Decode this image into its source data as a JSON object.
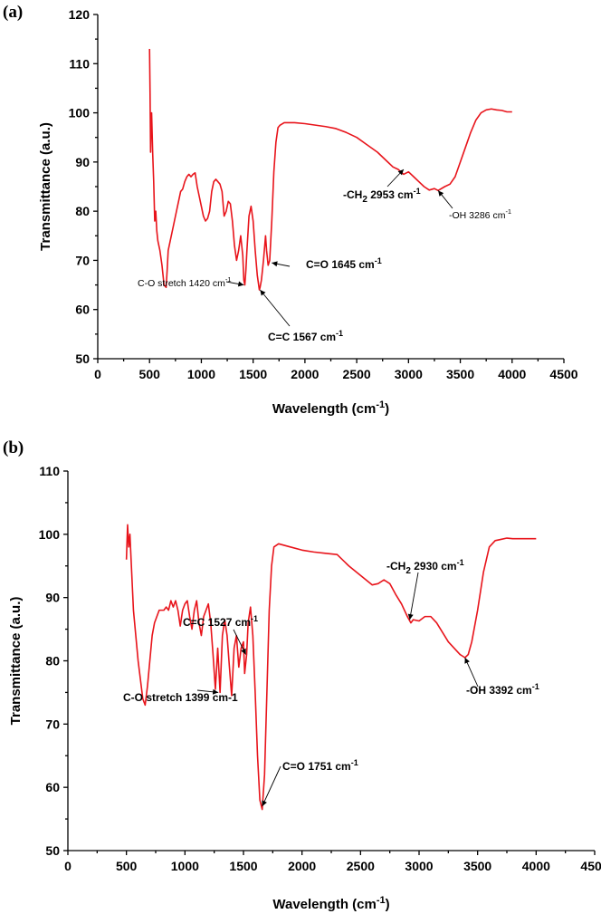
{
  "colors": {
    "series": "#e8141b",
    "axis": "#000000"
  },
  "chart_data": [
    {
      "panel": "(a)",
      "type": "line",
      "title": "",
      "xlabel": "Wavelength (cm",
      "xlabel_sup": "-1",
      "xlabel_suffix": ")",
      "ylabel": "Transmittance (a.u.)",
      "xlim": [
        0,
        4500
      ],
      "ylim": [
        50,
        120
      ],
      "xticks": [
        0,
        500,
        1000,
        1500,
        2000,
        2500,
        3000,
        3500,
        4000,
        4500
      ],
      "yticks": [
        50,
        60,
        70,
        80,
        90,
        100,
        110,
        120
      ],
      "series": [
        {
          "name": "(a)",
          "x": [
            500,
            505,
            510,
            515,
            520,
            530,
            540,
            550,
            560,
            570,
            580,
            600,
            620,
            640,
            660,
            670,
            680,
            700,
            720,
            740,
            760,
            780,
            800,
            820,
            840,
            860,
            880,
            900,
            920,
            940,
            960,
            980,
            1000,
            1020,
            1040,
            1060,
            1080,
            1100,
            1120,
            1140,
            1160,
            1180,
            1200,
            1220,
            1240,
            1260,
            1280,
            1300,
            1320,
            1340,
            1360,
            1380,
            1400,
            1410,
            1420,
            1430,
            1440,
            1460,
            1480,
            1500,
            1520,
            1540,
            1560,
            1567,
            1580,
            1600,
            1620,
            1630,
            1645,
            1660,
            1680,
            1700,
            1720,
            1740,
            1760,
            1800,
            1900,
            2000,
            2100,
            2200,
            2300,
            2400,
            2500,
            2600,
            2700,
            2800,
            2850,
            2900,
            2953,
            3000,
            3050,
            3100,
            3150,
            3200,
            3250,
            3286,
            3350,
            3400,
            3450,
            3500,
            3550,
            3600,
            3650,
            3700,
            3750,
            3800,
            3850,
            3900,
            3950,
            4000
          ],
          "values": [
            113,
            104,
            92,
            98,
            100,
            92,
            86,
            78,
            80,
            76,
            74,
            72,
            69,
            65,
            64.5,
            68,
            72,
            74,
            76,
            78,
            80,
            82,
            84,
            84.5,
            86,
            87,
            87.5,
            87,
            87.5,
            87.8,
            85,
            83,
            81,
            79,
            78,
            78.5,
            80,
            84,
            86,
            86.5,
            86,
            85.5,
            84,
            79,
            80,
            82,
            81.5,
            78,
            73,
            70,
            72,
            75,
            71,
            66,
            65,
            68,
            72,
            79,
            81,
            78,
            72,
            67,
            64,
            64.5,
            66,
            70,
            75,
            72,
            69,
            70,
            78,
            88,
            94,
            97,
            97.5,
            98,
            98,
            97.8,
            97.5,
            97.2,
            96.8,
            96,
            95,
            93.5,
            92,
            90,
            89,
            88.5,
            87.5,
            88,
            87,
            86,
            85,
            84.3,
            84.6,
            84.2,
            85,
            85.5,
            87,
            90,
            93,
            96,
            98.5,
            100,
            100.6,
            100.8,
            100.6,
            100.5,
            100.2,
            100.2
          ]
        }
      ],
      "annotations": [
        {
          "id": "co",
          "label": "C-O stretch 1420 cm",
          "sup": "-1",
          "x": 1410,
          "y": 65
        },
        {
          "id": "cc",
          "label": "C=C 1567 cm",
          "sup": "-1",
          "x": 1567,
          "y": 64
        },
        {
          "id": "c_o",
          "label": "C=O 1645 cm",
          "sup": "-1",
          "x": 1680,
          "y": 69.5
        },
        {
          "id": "ch2_pre",
          "label": "-CH",
          "sub": "2",
          "label_post": " 2953 cm",
          "sup": "-1",
          "x": 2953,
          "y": 88.5
        },
        {
          "id": "oh",
          "label": "-OH 3286 cm",
          "sup": "-1",
          "x": 3286,
          "y": 84.2
        }
      ]
    },
    {
      "panel": "(b)",
      "type": "line",
      "title": "",
      "xlabel": "Wavelength (cm",
      "xlabel_sup": "-1",
      "xlabel_suffix": ")",
      "ylabel": "Transmittance (a.u.)",
      "xlim": [
        0,
        4500
      ],
      "ylim": [
        50,
        110
      ],
      "xticks": [
        0,
        500,
        1000,
        1500,
        2000,
        2500,
        3000,
        3500,
        4000,
        4500
      ],
      "yticks": [
        50,
        60,
        70,
        80,
        90,
        100,
        110
      ],
      "series": [
        {
          "name": "(b)",
          "x": [
            500,
            510,
            520,
            530,
            540,
            560,
            580,
            600,
            620,
            640,
            660,
            680,
            700,
            720,
            740,
            760,
            780,
            800,
            820,
            840,
            860,
            880,
            900,
            920,
            940,
            960,
            980,
            1000,
            1020,
            1040,
            1060,
            1080,
            1100,
            1120,
            1140,
            1160,
            1180,
            1200,
            1220,
            1240,
            1260,
            1280,
            1300,
            1320,
            1340,
            1360,
            1380,
            1399,
            1420,
            1440,
            1460,
            1480,
            1500,
            1510,
            1527,
            1540,
            1560,
            1580,
            1600,
            1620,
            1640,
            1660,
            1680,
            1700,
            1720,
            1740,
            1760,
            1800,
            1900,
            2000,
            2100,
            2200,
            2300,
            2400,
            2500,
            2600,
            2650,
            2700,
            2750,
            2800,
            2850,
            2900,
            2930,
            2950,
            3000,
            3050,
            3100,
            3150,
            3200,
            3250,
            3300,
            3350,
            3392,
            3420,
            3450,
            3500,
            3550,
            3600,
            3650,
            3700,
            3750,
            3800,
            3900,
            4000
          ],
          "values": [
            96,
            101.5,
            98,
            100,
            96,
            88,
            84,
            80,
            77,
            74,
            73,
            76,
            80,
            84,
            86,
            87,
            88,
            88,
            88,
            88.5,
            88,
            89.5,
            88.5,
            89.5,
            88,
            85.5,
            88,
            89,
            89.5,
            87,
            85,
            88,
            89.5,
            86,
            84,
            87,
            88,
            89,
            86,
            81,
            75.5,
            82,
            75,
            84,
            86.5,
            84,
            79,
            74.5,
            82,
            84,
            79,
            82,
            83,
            78,
            81,
            86,
            88.5,
            84,
            75,
            65,
            58,
            56.5,
            62,
            75,
            88,
            95,
            98,
            98.5,
            98,
            97.5,
            97.2,
            97,
            96.8,
            95,
            93.5,
            92,
            92.2,
            92.8,
            92.2,
            90.5,
            89,
            87,
            86,
            86.5,
            86.3,
            87,
            87,
            86,
            84.5,
            83,
            82,
            81,
            80.5,
            81,
            83,
            88,
            94,
            98,
            99,
            99.2,
            99.4,
            99.3,
            99.3,
            99.3
          ]
        }
      ],
      "annotations": [
        {
          "id": "cc",
          "label": "C=C 1527 cm",
          "sup": "-1",
          "x": 1520,
          "y": 81
        },
        {
          "id": "co",
          "label": "C-O stretch 1399 cm-1",
          "x": 1285,
          "y": 75
        },
        {
          "id": "c_o",
          "label": "C=O 1751 cm",
          "sup": "-1",
          "x": 1660,
          "y": 57
        },
        {
          "id": "ch2_pre",
          "label": "-CH",
          "sub": "2",
          "label_post": " 2930 cm",
          "sup": "-1",
          "x": 2920,
          "y": 86.5
        },
        {
          "id": "oh",
          "label": "-OH 3392 cm",
          "sup": "-1",
          "x": 3392,
          "y": 80.5
        }
      ]
    }
  ]
}
